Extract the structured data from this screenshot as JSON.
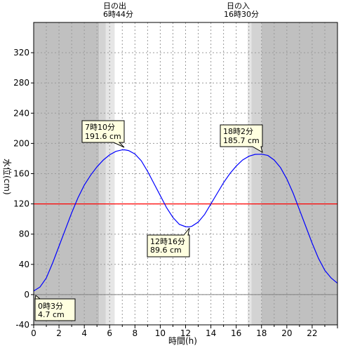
{
  "chart_data": {
    "type": "line",
    "xlabel": "時間(h)",
    "ylabel": "水位(cm)",
    "xlim": [
      0,
      24
    ],
    "ylim": [
      -40,
      360
    ],
    "x_ticks": [
      0,
      2,
      4,
      6,
      8,
      10,
      12,
      14,
      16,
      18,
      20,
      22
    ],
    "y_ticks": [
      -40,
      0,
      40,
      80,
      120,
      160,
      200,
      240,
      280,
      320
    ],
    "reference_line": {
      "y": 120,
      "color": "#ff0000"
    },
    "series": [
      {
        "color": "#0000ff",
        "points": [
          [
            0.0,
            4.7
          ],
          [
            0.5,
            10
          ],
          [
            1.0,
            22
          ],
          [
            1.5,
            42
          ],
          [
            2.0,
            64
          ],
          [
            2.5,
            86
          ],
          [
            3.0,
            108
          ],
          [
            3.5,
            128
          ],
          [
            4.0,
            145
          ],
          [
            4.5,
            158
          ],
          [
            5.0,
            169
          ],
          [
            5.5,
            178
          ],
          [
            6.0,
            185
          ],
          [
            6.5,
            189.5
          ],
          [
            7.0,
            191.5
          ],
          [
            7.17,
            191.6
          ],
          [
            7.5,
            190.5
          ],
          [
            8.0,
            186
          ],
          [
            8.5,
            177
          ],
          [
            9.0,
            163
          ],
          [
            9.5,
            147
          ],
          [
            10.0,
            131
          ],
          [
            10.5,
            115
          ],
          [
            11.0,
            102
          ],
          [
            11.5,
            93
          ],
          [
            12.0,
            89.8
          ],
          [
            12.27,
            89.6
          ],
          [
            12.5,
            90.5
          ],
          [
            13.0,
            96
          ],
          [
            13.5,
            106
          ],
          [
            14.0,
            120
          ],
          [
            14.5,
            134
          ],
          [
            15.0,
            148
          ],
          [
            15.5,
            160
          ],
          [
            16.0,
            170
          ],
          [
            16.5,
            178
          ],
          [
            17.0,
            183
          ],
          [
            17.5,
            185.5
          ],
          [
            18.03,
            185.7
          ],
          [
            18.5,
            184
          ],
          [
            19.0,
            178
          ],
          [
            19.5,
            168
          ],
          [
            20.0,
            153
          ],
          [
            20.5,
            134
          ],
          [
            21.0,
            112
          ],
          [
            21.5,
            90
          ],
          [
            22.0,
            68
          ],
          [
            22.5,
            48
          ],
          [
            23.0,
            32
          ],
          [
            23.5,
            22
          ],
          [
            24.0,
            15
          ]
        ]
      }
    ],
    "sunrise": {
      "label_1": "日の出",
      "label_2": "6時44分"
    },
    "sunset": {
      "label_1": "日の入",
      "label_2": "16時30分"
    },
    "annotations": [
      {
        "time": "0時3分",
        "level": "4.7 cm"
      },
      {
        "time": "7時10分",
        "level": "191.6 cm"
      },
      {
        "time": "12時16分",
        "level": "89.6 cm"
      },
      {
        "time": "18時2分",
        "level": "185.7 cm"
      }
    ]
  }
}
